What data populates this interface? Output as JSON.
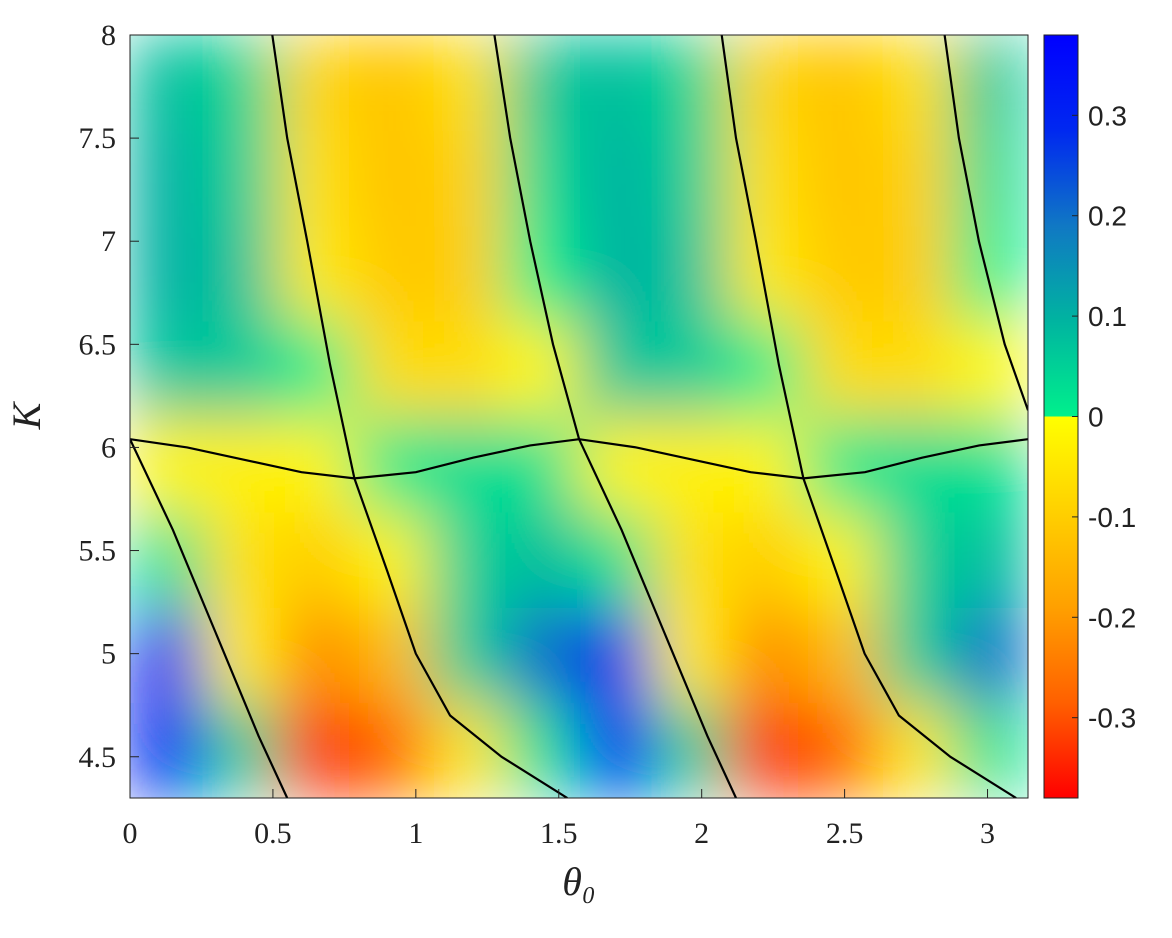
{
  "chart_data": {
    "type": "heatmap",
    "xlabel": "θ₀",
    "ylabel": "K",
    "xlim": [
      0,
      3.1416
    ],
    "xticks": [
      0,
      0.5,
      1,
      1.5,
      2,
      2.5,
      3
    ],
    "ylim": [
      4.3,
      8
    ],
    "yticks": [
      4.5,
      5,
      5.5,
      6,
      6.5,
      7,
      7.5,
      8
    ],
    "clim": [
      -0.38,
      0.38
    ],
    "cticks": [
      -0.3,
      -0.2,
      -0.1,
      0,
      0.1,
      0.2,
      0.3
    ],
    "colormap_negative": [
      "#ff0000",
      "#ff6000",
      "#ffa000",
      "#ffd000",
      "#ffff00"
    ],
    "colormap_positive": [
      "#00f08c",
      "#00b4a0",
      "#1078c4",
      "#0028f0",
      "#0000ff"
    ],
    "z": [
      [
        0.3,
        0.05,
        -0.33,
        -0.28,
        -0.05,
        0.02,
        0.3,
        0.05,
        -0.33,
        -0.28,
        -0.05,
        0.02
      ],
      [
        0.28,
        -0.03,
        -0.22,
        -0.14,
        0.05,
        0.2,
        0.28,
        -0.03,
        -0.22,
        -0.14,
        0.05,
        0.2
      ],
      [
        0.02,
        -0.06,
        -0.1,
        -0.02,
        0.05,
        0.08,
        0.02,
        -0.06,
        -0.1,
        -0.02,
        0.05,
        0.08
      ],
      [
        -0.02,
        -0.03,
        -0.02,
        0.01,
        0.03,
        0.02,
        -0.02,
        -0.03,
        -0.02,
        0.01,
        0.03,
        0.02
      ],
      [
        0.07,
        0.06,
        0.0,
        -0.07,
        -0.07,
        -0.01,
        0.07,
        0.06,
        0.0,
        -0.07,
        -0.07,
        -0.01
      ],
      [
        0.1,
        0.07,
        -0.04,
        -0.11,
        -0.1,
        0.0,
        0.1,
        0.07,
        -0.04,
        -0.11,
        -0.1,
        0.0
      ],
      [
        0.1,
        0.05,
        -0.06,
        -0.12,
        -0.09,
        0.03,
        0.1,
        0.05,
        -0.06,
        -0.12,
        -0.09,
        0.03
      ],
      [
        0.08,
        0.04,
        -0.08,
        -0.12,
        -0.06,
        0.06,
        0.08,
        0.04,
        -0.08,
        -0.12,
        -0.06,
        0.06
      ]
    ],
    "contour_color": "#000000",
    "contours": [
      {
        "x": [
          0,
          0.15,
          0.3,
          0.45,
          0.55
        ],
        "y": [
          6.04,
          5.6,
          5.1,
          4.6,
          4.3
        ]
      },
      {
        "x": [
          0,
          0.2,
          0.4,
          0.6,
          0.785,
          1.0,
          1.2,
          1.4,
          1.571,
          1.771,
          1.971,
          2.171,
          2.356,
          2.571,
          2.771,
          2.971,
          3.1416
        ],
        "y": [
          6.04,
          6.0,
          5.94,
          5.88,
          5.85,
          5.88,
          5.95,
          6.01,
          6.04,
          6.0,
          5.94,
          5.88,
          5.85,
          5.88,
          5.95,
          6.01,
          6.04
        ]
      },
      {
        "x": [
          0.498,
          0.55,
          0.62,
          0.7,
          0.785
        ],
        "y": [
          8,
          7.5,
          7,
          6.4,
          5.85
        ]
      },
      {
        "x": [
          1.275,
          1.33,
          1.4,
          1.48,
          1.571
        ],
        "y": [
          8,
          7.5,
          7,
          6.5,
          6.04
        ]
      },
      {
        "x": [
          0.785,
          0.9,
          1.0,
          1.12,
          1.3,
          1.53
        ],
        "y": [
          5.85,
          5.4,
          5.0,
          4.7,
          4.5,
          4.3
        ]
      },
      {
        "x": [
          1.571,
          1.72,
          1.87,
          2.02,
          2.12
        ],
        "y": [
          6.04,
          5.6,
          5.1,
          4.6,
          4.3
        ]
      },
      {
        "x": [
          2.356,
          2.47,
          2.57,
          2.69,
          2.87,
          3.1
        ],
        "y": [
          5.85,
          5.4,
          5.0,
          4.7,
          4.5,
          4.3
        ]
      },
      {
        "x": [
          2.07,
          2.12,
          2.19,
          2.27,
          2.356
        ],
        "y": [
          8,
          7.5,
          7,
          6.4,
          5.85
        ]
      },
      {
        "x": [
          2.85,
          2.9,
          2.97,
          3.06,
          3.1416
        ],
        "y": [
          8,
          7.5,
          7,
          6.5,
          6.18
        ]
      }
    ]
  }
}
